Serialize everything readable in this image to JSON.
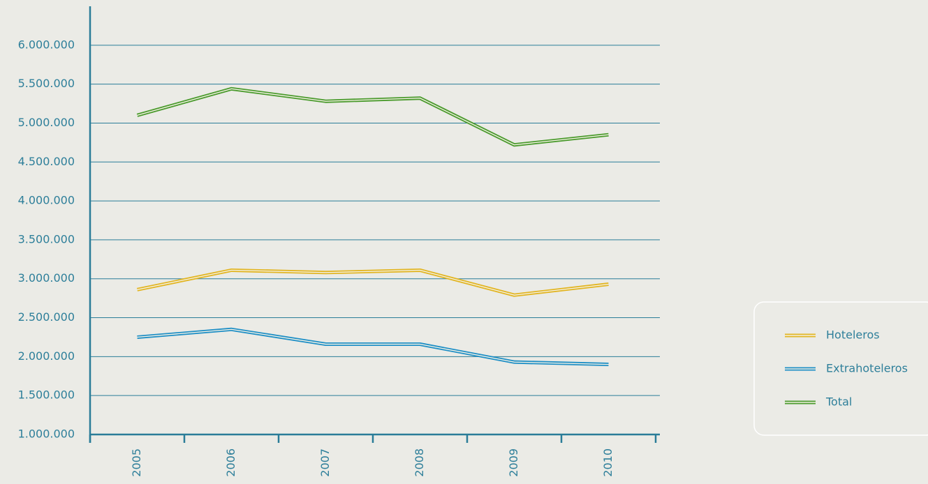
{
  "chart_data": {
    "type": "line",
    "categories": [
      "2005",
      "2006",
      "2007",
      "2008",
      "2009",
      "2010"
    ],
    "series": [
      {
        "name": "Hoteleros",
        "color": "#e2b523",
        "values": [
          2860000,
          3110000,
          3080000,
          3110000,
          2790000,
          2930000
        ]
      },
      {
        "name": "Extrahoteleros",
        "color": "#1f8fc6",
        "values": [
          2250000,
          2350000,
          2160000,
          2160000,
          1930000,
          1900000
        ]
      },
      {
        "name": "Total",
        "color": "#4b9b2e",
        "values": [
          5100000,
          5440000,
          5280000,
          5320000,
          4720000,
          4850000
        ]
      }
    ],
    "ylim": [
      1000000,
      6500000
    ],
    "yticks": [
      {
        "value": 1000000,
        "label": "1.000.000"
      },
      {
        "value": 1500000,
        "label": "1.500.000"
      },
      {
        "value": 2000000,
        "label": "2.000.000"
      },
      {
        "value": 2500000,
        "label": "2.500.000"
      },
      {
        "value": 3000000,
        "label": "3.000.000"
      },
      {
        "value": 3500000,
        "label": "3.500.000"
      },
      {
        "value": 4000000,
        "label": "4.000.000"
      },
      {
        "value": 4500000,
        "label": "4.500.000"
      },
      {
        "value": 5000000,
        "label": "5.000.000"
      },
      {
        "value": 5500000,
        "label": "5.500.000"
      },
      {
        "value": 6000000,
        "label": "6.000.000"
      }
    ],
    "grid": true
  }
}
